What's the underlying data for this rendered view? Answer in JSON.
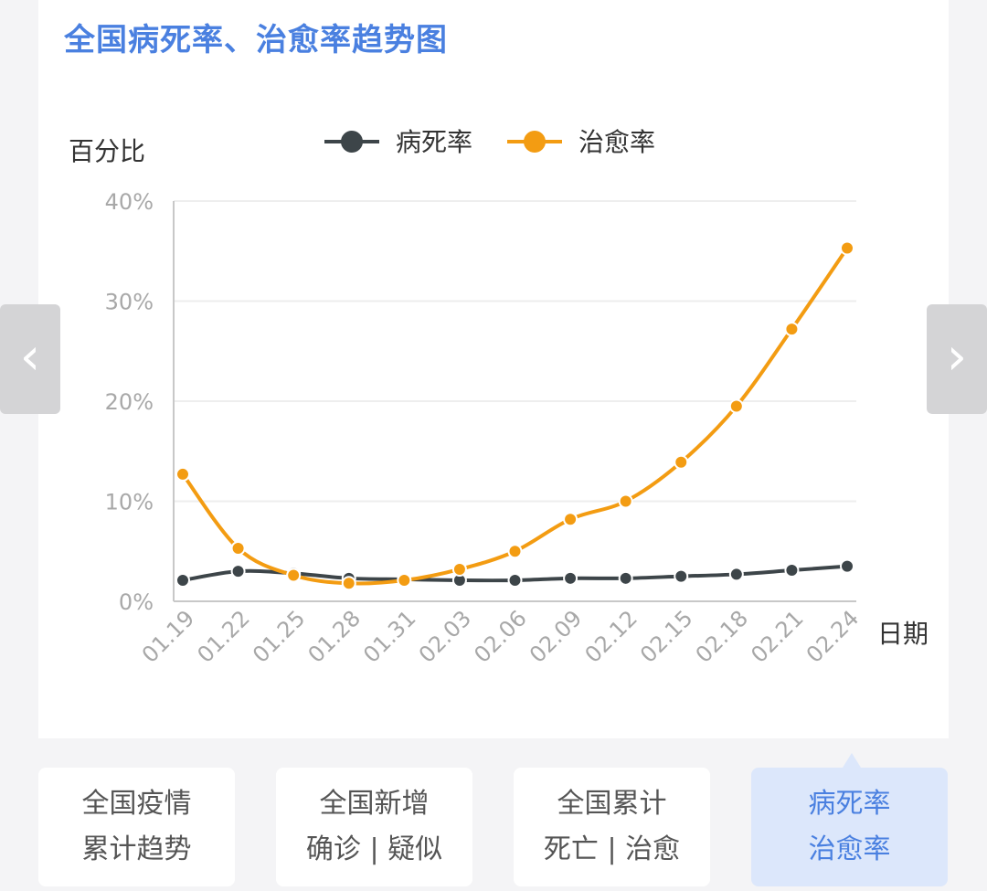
{
  "title": "全国病死率、治愈率趋势图",
  "nav": {
    "prev": "‹",
    "next": "›"
  },
  "tabs": [
    {
      "line1": "全国疫情",
      "line2": "累计趋势",
      "active": false
    },
    {
      "line1": "全国新增",
      "line2": "确诊 | 疑似",
      "active": false
    },
    {
      "line1": "全国累计",
      "line2": "死亡 | 治愈",
      "active": false
    },
    {
      "line1": "病死率",
      "line2": "治愈率",
      "active": true
    }
  ],
  "chart_data": {
    "type": "line",
    "ylabel": "百分比",
    "xlabel": "日期",
    "ylim": [
      0,
      40
    ],
    "yticks": [
      "0%",
      "10%",
      "20%",
      "30%",
      "40%"
    ],
    "grid": true,
    "legend": "top",
    "categories": [
      "01.19",
      "01.22",
      "01.25",
      "01.28",
      "01.31",
      "02.03",
      "02.06",
      "02.09",
      "02.12",
      "02.15",
      "02.18",
      "02.21",
      "02.24"
    ],
    "series": [
      {
        "name": "病死率",
        "color": "#3d4549",
        "values": [
          2.1,
          3.0,
          2.8,
          2.3,
          2.2,
          2.1,
          2.1,
          2.3,
          2.3,
          2.5,
          2.7,
          3.1,
          3.5
        ]
      },
      {
        "name": "治愈率",
        "color": "#f39c12",
        "values": [
          12.7,
          5.3,
          2.6,
          1.8,
          2.1,
          3.2,
          5.0,
          8.2,
          10.0,
          13.9,
          19.5,
          27.2,
          35.3
        ]
      }
    ]
  }
}
